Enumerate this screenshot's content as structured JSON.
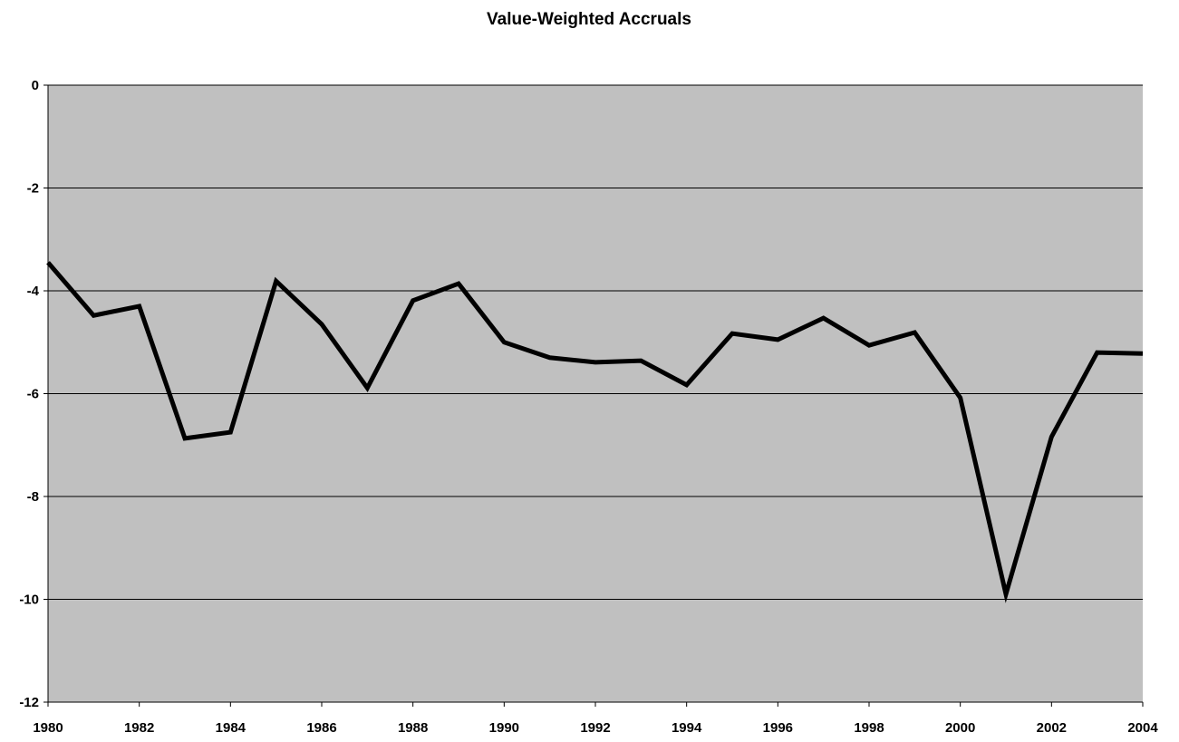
{
  "chart_data": {
    "type": "line",
    "title": "Value-Weighted  Accruals",
    "x": [
      1980,
      1981,
      1982,
      1983,
      1984,
      1985,
      1986,
      1987,
      1988,
      1989,
      1990,
      1991,
      1992,
      1993,
      1994,
      1995,
      1996,
      1997,
      1998,
      1999,
      2000,
      2001,
      2002,
      2003,
      2004
    ],
    "series": [
      {
        "name": "Value-Weighted Accruals",
        "color": "#000000",
        "values": [
          -3.45,
          -4.48,
          -4.3,
          -6.87,
          -6.75,
          -3.81,
          -4.65,
          -5.89,
          -4.19,
          -3.86,
          -5.0,
          -5.3,
          -5.39,
          -5.36,
          -5.83,
          -4.83,
          -4.95,
          -4.53,
          -5.06,
          -4.81,
          -6.08,
          -9.9,
          -6.84,
          -5.2,
          -5.22
        ]
      }
    ],
    "xlim": [
      1980,
      2004
    ],
    "xticks": [
      1980,
      1982,
      1984,
      1986,
      1988,
      1990,
      1992,
      1994,
      1996,
      1998,
      2000,
      2002,
      2004
    ],
    "ylim": [
      -12,
      0
    ],
    "yticks": [
      -12,
      -10,
      -8,
      -6,
      -4,
      -2,
      0
    ],
    "grid": true
  }
}
